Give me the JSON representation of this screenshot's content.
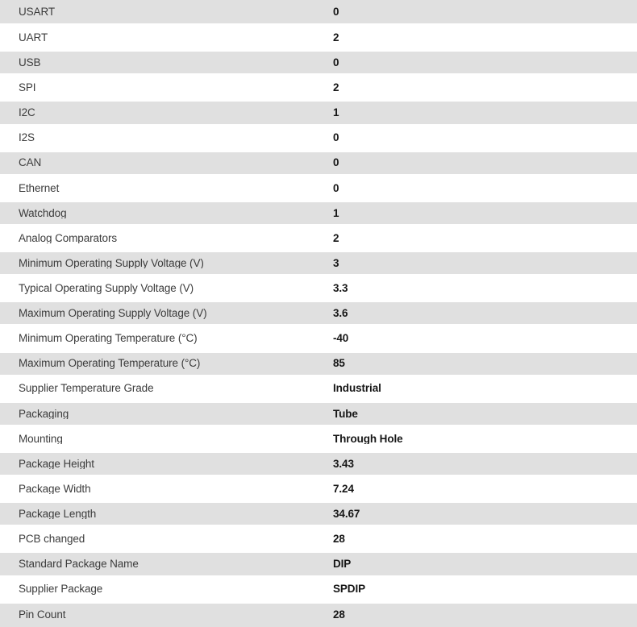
{
  "table": {
    "title": "product-parametric-specifications",
    "columns": [
      "parameter",
      "value"
    ],
    "rows": [
      {
        "label": "USART",
        "value": "0"
      },
      {
        "label": "UART",
        "value": "2"
      },
      {
        "label": "USB",
        "value": "0"
      },
      {
        "label": "SPI",
        "value": "2"
      },
      {
        "label": "I2C",
        "value": "1"
      },
      {
        "label": "I2S",
        "value": "0"
      },
      {
        "label": "CAN",
        "value": "0"
      },
      {
        "label": "Ethernet",
        "value": "0"
      },
      {
        "label": "Watchdog",
        "value": "1"
      },
      {
        "label": "Analog Comparators",
        "value": "2"
      },
      {
        "label": "Minimum Operating Supply Voltage (V)",
        "value": "3"
      },
      {
        "label": "Typical Operating Supply Voltage (V)",
        "value": "3.3"
      },
      {
        "label": "Maximum Operating Supply Voltage (V)",
        "value": "3.6"
      },
      {
        "label": "Minimum Operating Temperature (°C)",
        "value": "-40"
      },
      {
        "label": "Maximum Operating Temperature (°C)",
        "value": "85"
      },
      {
        "label": "Supplier Temperature Grade",
        "value": "Industrial"
      },
      {
        "label": "Packaging",
        "value": "Tube"
      },
      {
        "label": "Mounting",
        "value": "Through Hole"
      },
      {
        "label": "Package Height",
        "value": "3.43"
      },
      {
        "label": "Package Width",
        "value": "7.24"
      },
      {
        "label": "Package Length",
        "value": "34.67"
      },
      {
        "label": "PCB changed",
        "value": "28"
      },
      {
        "label": "Standard Package Name",
        "value": "DIP"
      },
      {
        "label": "Supplier Package",
        "value": "SPDIP"
      },
      {
        "label": "Pin Count",
        "value": "28"
      }
    ]
  },
  "colors": {
    "row_alt_bg": "#e0e0e0",
    "row_bg": "#ffffff",
    "label_text": "#3c3c3c",
    "value_text": "#161616"
  }
}
